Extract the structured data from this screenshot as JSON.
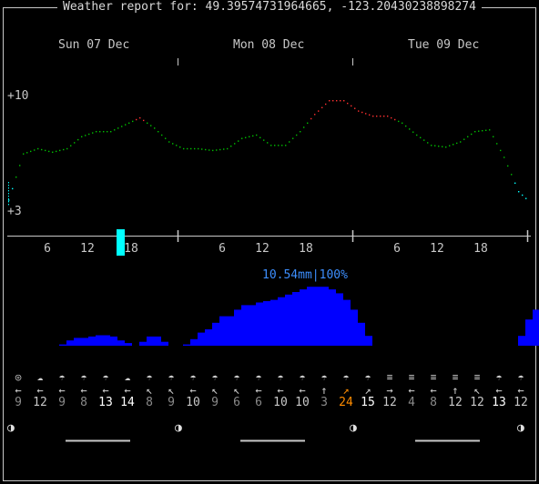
{
  "window": {
    "title": "Weather report for: 49.39574731964665, -123.20430238898274"
  },
  "days": [
    {
      "label": "Sun 07 Dec"
    },
    {
      "label": "Mon 08 Dec"
    },
    {
      "label": "Tue 09 Dec"
    }
  ],
  "y_labels": {
    "top": "+10",
    "bottom": "+3"
  },
  "hour_ticks": [
    "6",
    "12",
    "18",
    "6",
    "12",
    "18",
    "6",
    "12",
    "18"
  ],
  "precip": {
    "summary": "10.54mm|100%"
  },
  "colors": {
    "cold": "#00ffff",
    "cool": "#00c000",
    "warm": "#ff3030",
    "precip": "#0000ff",
    "current": "#00ffff",
    "highlight": "#ff8c00",
    "accent": "#3d8fff"
  },
  "chart_data": [
    {
      "type": "line",
      "ylim": [
        3,
        10
      ],
      "x_hours": [
        0,
        2,
        4,
        6,
        8,
        10,
        12,
        14,
        16,
        18,
        20,
        22,
        24,
        26,
        28,
        30,
        32,
        34,
        36,
        38,
        40,
        42,
        44,
        46,
        48,
        50,
        52,
        54,
        56,
        58,
        60,
        62,
        64,
        66,
        68,
        70,
        71
      ],
      "values": [
        3.8,
        6.5,
        6.8,
        6.6,
        6.8,
        7.5,
        7.8,
        7.8,
        8.2,
        8.6,
        8.0,
        7.2,
        6.8,
        6.8,
        6.7,
        6.8,
        7.4,
        7.6,
        7.0,
        7.0,
        7.8,
        8.8,
        9.6,
        9.6,
        9.0,
        8.7,
        8.7,
        8.3,
        7.6,
        7.0,
        6.9,
        7.2,
        7.8,
        7.9,
        6.3,
        4.3,
        3.9
      ]
    },
    {
      "type": "bar",
      "x_hours": [
        0,
        1,
        2,
        3,
        4,
        5,
        6,
        7,
        8,
        9,
        10,
        11,
        12,
        13,
        14,
        15,
        16,
        17,
        18,
        19,
        20,
        21,
        22,
        23,
        24,
        25,
        26,
        27,
        28,
        29,
        30,
        31,
        32,
        33,
        34,
        35,
        36,
        37,
        38,
        39,
        40,
        41,
        42,
        43,
        44,
        45,
        46,
        47,
        48,
        49,
        50,
        51,
        52,
        53,
        54,
        55,
        56,
        57,
        58,
        59,
        60,
        61,
        62,
        63,
        64,
        65,
        66,
        67,
        68,
        69,
        70,
        71
      ],
      "values": [
        0,
        0,
        0,
        0.02,
        0.08,
        0.12,
        0.12,
        0.14,
        0.16,
        0.16,
        0.14,
        0.08,
        0.04,
        0,
        0.06,
        0.14,
        0.14,
        0.06,
        0,
        0,
        0.02,
        0.1,
        0.2,
        0.25,
        0.35,
        0.45,
        0.45,
        0.55,
        0.62,
        0.62,
        0.66,
        0.68,
        0.7,
        0.74,
        0.78,
        0.82,
        0.86,
        0.9,
        0.9,
        0.9,
        0.86,
        0.8,
        0.7,
        0.55,
        0.35,
        0.15,
        0,
        0,
        0,
        0,
        0,
        0,
        0,
        0,
        0,
        0,
        0,
        0,
        0,
        0,
        0,
        0,
        0,
        0,
        0,
        0,
        0.15,
        0.4,
        0.55,
        0.5,
        0.4,
        0.1
      ]
    }
  ],
  "forecast": [
    {
      "icon": "◎",
      "icon_name": "full-moon-icon",
      "dir": "←",
      "speed": "9"
    },
    {
      "icon": "☁",
      "icon_name": "partly-cloudy-icon",
      "dir": "←",
      "speed": "12"
    },
    {
      "icon": "☂",
      "icon_name": "rain-icon",
      "dir": "←",
      "speed": "9"
    },
    {
      "icon": "☂",
      "icon_name": "rain-icon",
      "dir": "←",
      "speed": "8"
    },
    {
      "icon": "☂",
      "icon_name": "rain-icon",
      "dir": "←",
      "speed": "13"
    },
    {
      "icon": "☁",
      "icon_name": "cloud-icon",
      "dir": "←",
      "speed": "14"
    },
    {
      "icon": "☂",
      "icon_name": "rain-icon",
      "dir": "↖",
      "speed": "8"
    },
    {
      "icon": "☂",
      "icon_name": "rain-icon",
      "dir": "↖",
      "speed": "9"
    },
    {
      "icon": "☂",
      "icon_name": "rain-icon",
      "dir": "←",
      "speed": "10"
    },
    {
      "icon": "☂",
      "icon_name": "rain-icon",
      "dir": "↖",
      "speed": "9"
    },
    {
      "icon": "☂",
      "icon_name": "rain-icon",
      "dir": "↖",
      "speed": "6"
    },
    {
      "icon": "☂",
      "icon_name": "rain-icon",
      "dir": "←",
      "speed": "6"
    },
    {
      "icon": "☂",
      "icon_name": "rain-icon",
      "dir": "←",
      "speed": "10"
    },
    {
      "icon": "☂",
      "icon_name": "rain-icon",
      "dir": "←",
      "speed": "10"
    },
    {
      "icon": "☂",
      "icon_name": "rain-icon",
      "dir": "↑",
      "speed": "3"
    },
    {
      "icon": "☂",
      "icon_name": "rain-icon",
      "dir": "↗",
      "speed": "24"
    },
    {
      "icon": "☂",
      "icon_name": "rain-icon",
      "dir": "↗",
      "speed": "15"
    },
    {
      "icon": "≡",
      "icon_name": "fog-icon",
      "dir": "→",
      "speed": "12"
    },
    {
      "icon": "≡",
      "icon_name": "fog-icon",
      "dir": "←",
      "speed": "4"
    },
    {
      "icon": "≡",
      "icon_name": "fog-icon",
      "dir": "←",
      "speed": "8"
    },
    {
      "icon": "≡",
      "icon_name": "fog-icon",
      "dir": "↑",
      "speed": "12"
    },
    {
      "icon": "≡",
      "icon_name": "fog-icon",
      "dir": "↖",
      "speed": "12"
    },
    {
      "icon": "☂",
      "icon_name": "rain-icon",
      "dir": "←",
      "speed": "13"
    },
    {
      "icon": "☂",
      "icon_name": "rain-icon",
      "dir": "←",
      "speed": "12"
    }
  ],
  "moon": {
    "symbol": "◑"
  }
}
